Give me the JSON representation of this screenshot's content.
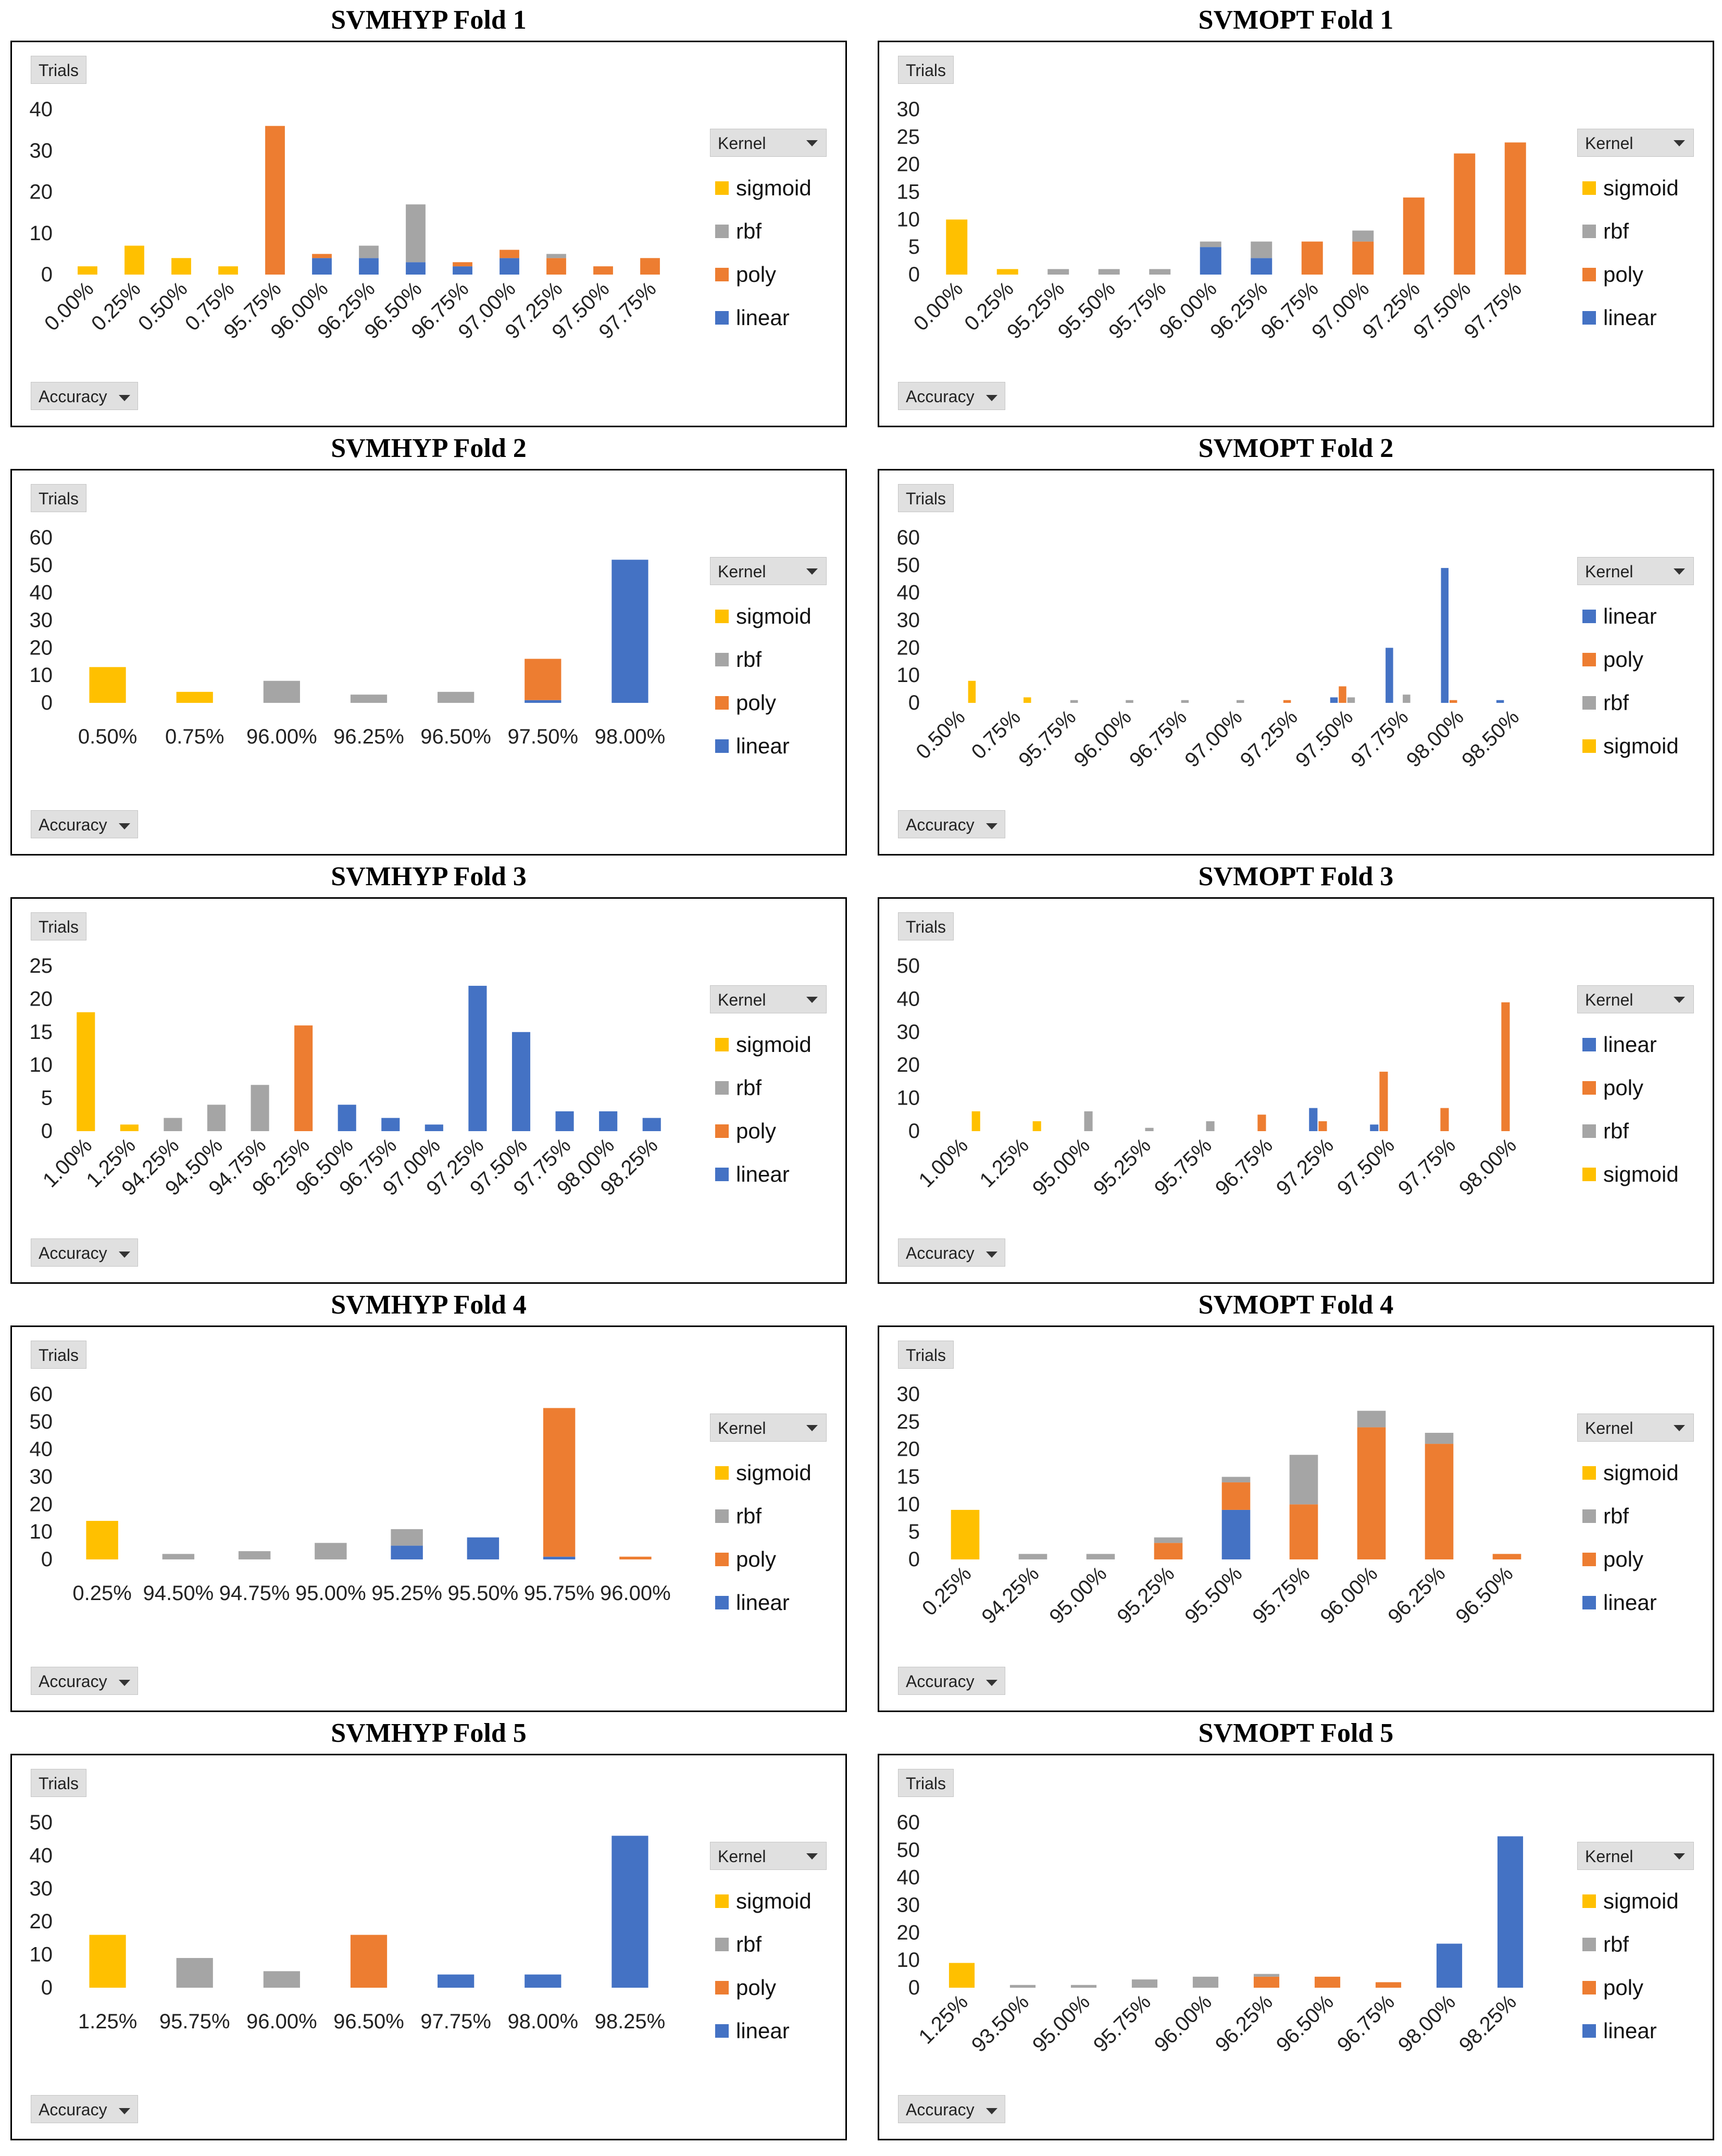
{
  "colors": {
    "sigmoid": "#FFC000",
    "rbf": "#A5A5A5",
    "poly": "#ED7D31",
    "linear": "#4472C4"
  },
  "controls": {
    "y_button": "Trials",
    "x_button": "Accuracy",
    "legend_button": "Kernel"
  },
  "chart_data": [
    {
      "type": "bar",
      "stacked": true,
      "title": "SVMHYP Fold 1",
      "xlabel": "Accuracy",
      "ylabel": "Trials",
      "ylim": [
        0,
        40
      ],
      "yticks": [
        0,
        10,
        20,
        30,
        40
      ],
      "rotated": true,
      "legend": [
        "sigmoid",
        "rbf",
        "poly",
        "linear"
      ],
      "stack_order": [
        "linear",
        "poly",
        "rbf",
        "sigmoid"
      ],
      "categories": [
        "0.00%",
        "0.25%",
        "0.50%",
        "0.75%",
        "95.75%",
        "96.00%",
        "96.25%",
        "96.50%",
        "96.75%",
        "97.00%",
        "97.25%",
        "97.50%",
        "97.75%"
      ],
      "series": [
        {
          "name": "linear",
          "values": [
            0,
            0,
            0,
            0,
            0,
            4,
            4,
            3,
            2,
            4,
            0,
            0,
            0
          ]
        },
        {
          "name": "poly",
          "values": [
            0,
            0,
            0,
            0,
            36,
            1,
            0,
            0,
            1,
            2,
            4,
            2,
            4
          ]
        },
        {
          "name": "rbf",
          "values": [
            0,
            0,
            0,
            0,
            0,
            0,
            3,
            14,
            0,
            0,
            1,
            0,
            0
          ]
        },
        {
          "name": "sigmoid",
          "values": [
            2,
            7,
            4,
            2,
            0,
            0,
            0,
            0,
            0,
            0,
            0,
            0,
            0
          ]
        }
      ]
    },
    {
      "type": "bar",
      "stacked": true,
      "title": "SVMOPT Fold 1",
      "xlabel": "Accuracy",
      "ylabel": "Trials",
      "ylim": [
        0,
        30
      ],
      "yticks": [
        0,
        5,
        10,
        15,
        20,
        25,
        30
      ],
      "rotated": true,
      "legend": [
        "sigmoid",
        "rbf",
        "poly",
        "linear"
      ],
      "stack_order": [
        "linear",
        "poly",
        "rbf",
        "sigmoid"
      ],
      "categories": [
        "0.00%",
        "0.25%",
        "95.25%",
        "95.50%",
        "95.75%",
        "96.00%",
        "96.25%",
        "96.75%",
        "97.00%",
        "97.25%",
        "97.50%",
        "97.75%"
      ],
      "series": [
        {
          "name": "linear",
          "values": [
            0,
            0,
            0,
            0,
            0,
            5,
            3,
            0,
            0,
            0,
            0,
            0
          ]
        },
        {
          "name": "poly",
          "values": [
            0,
            0,
            0,
            0,
            0,
            0,
            0,
            6,
            6,
            14,
            22,
            24
          ]
        },
        {
          "name": "rbf",
          "values": [
            0,
            0,
            1,
            1,
            1,
            1,
            3,
            0,
            2,
            0,
            0,
            0
          ]
        },
        {
          "name": "sigmoid",
          "values": [
            10,
            1,
            0,
            0,
            0,
            0,
            0,
            0,
            0,
            0,
            0,
            0
          ]
        }
      ]
    },
    {
      "type": "bar",
      "stacked": true,
      "title": "SVMHYP Fold 2",
      "xlabel": "Accuracy",
      "ylabel": "Trials",
      "ylim": [
        0,
        60
      ],
      "yticks": [
        0,
        10,
        20,
        30,
        40,
        50,
        60
      ],
      "rotated": false,
      "legend": [
        "sigmoid",
        "rbf",
        "poly",
        "linear"
      ],
      "stack_order": [
        "linear",
        "poly",
        "rbf",
        "sigmoid"
      ],
      "categories": [
        "0.50%",
        "0.75%",
        "96.00%",
        "96.25%",
        "96.50%",
        "97.50%",
        "98.00%"
      ],
      "series": [
        {
          "name": "linear",
          "values": [
            0,
            0,
            0,
            0,
            0,
            1,
            52
          ]
        },
        {
          "name": "poly",
          "values": [
            0,
            0,
            0,
            0,
            0,
            15,
            0
          ]
        },
        {
          "name": "rbf",
          "values": [
            0,
            0,
            8,
            3,
            4,
            0,
            0
          ]
        },
        {
          "name": "sigmoid",
          "values": [
            13,
            4,
            0,
            0,
            0,
            0,
            0
          ]
        }
      ]
    },
    {
      "type": "bar",
      "stacked": false,
      "title": "SVMOPT Fold 2",
      "xlabel": "Accuracy",
      "ylabel": "Trials",
      "ylim": [
        0,
        60
      ],
      "yticks": [
        0,
        10,
        20,
        30,
        40,
        50,
        60
      ],
      "rotated": true,
      "legend": [
        "linear",
        "poly",
        "rbf",
        "sigmoid"
      ],
      "series_order": [
        "linear",
        "poly",
        "rbf",
        "sigmoid"
      ],
      "categories": [
        "0.50%",
        "0.75%",
        "95.75%",
        "96.00%",
        "96.75%",
        "97.00%",
        "97.25%",
        "97.50%",
        "97.75%",
        "98.00%",
        "98.50%"
      ],
      "series": [
        {
          "name": "linear",
          "values": [
            0,
            0,
            0,
            0,
            0,
            0,
            0,
            2,
            20,
            49,
            1
          ]
        },
        {
          "name": "poly",
          "values": [
            0,
            0,
            0,
            0,
            0,
            0,
            1,
            6,
            0,
            1,
            0
          ]
        },
        {
          "name": "rbf",
          "values": [
            0,
            0,
            1,
            1,
            1,
            1,
            0,
            2,
            3,
            0,
            0
          ]
        },
        {
          "name": "sigmoid",
          "values": [
            8,
            2,
            0,
            0,
            0,
            0,
            0,
            0,
            0,
            0,
            0
          ]
        }
      ]
    },
    {
      "type": "bar",
      "stacked": true,
      "title": "SVMHYP Fold 3",
      "xlabel": "Accuracy",
      "ylabel": "Trials",
      "ylim": [
        0,
        25
      ],
      "yticks": [
        0,
        5,
        10,
        15,
        20,
        25
      ],
      "rotated": true,
      "legend": [
        "sigmoid",
        "rbf",
        "poly",
        "linear"
      ],
      "stack_order": [
        "linear",
        "poly",
        "rbf",
        "sigmoid"
      ],
      "categories": [
        "1.00%",
        "1.25%",
        "94.25%",
        "94.50%",
        "94.75%",
        "96.25%",
        "96.50%",
        "96.75%",
        "97.00%",
        "97.25%",
        "97.50%",
        "97.75%",
        "98.00%",
        "98.25%"
      ],
      "series": [
        {
          "name": "linear",
          "values": [
            0,
            0,
            0,
            0,
            0,
            0,
            4,
            2,
            1,
            22,
            15,
            3,
            3,
            2
          ]
        },
        {
          "name": "poly",
          "values": [
            0,
            0,
            0,
            0,
            0,
            16,
            0,
            0,
            0,
            0,
            0,
            0,
            0,
            0
          ]
        },
        {
          "name": "rbf",
          "values": [
            0,
            0,
            2,
            4,
            7,
            0,
            0,
            0,
            0,
            0,
            0,
            0,
            0,
            0
          ]
        },
        {
          "name": "sigmoid",
          "values": [
            18,
            1,
            0,
            0,
            0,
            0,
            0,
            0,
            0,
            0,
            0,
            0,
            0,
            0
          ]
        }
      ]
    },
    {
      "type": "bar",
      "stacked": false,
      "title": "SVMOPT Fold 3",
      "xlabel": "Accuracy",
      "ylabel": "Trials",
      "ylim": [
        0,
        50
      ],
      "yticks": [
        0,
        10,
        20,
        30,
        40,
        50
      ],
      "rotated": true,
      "legend": [
        "linear",
        "poly",
        "rbf",
        "sigmoid"
      ],
      "series_order": [
        "linear",
        "poly",
        "rbf",
        "sigmoid"
      ],
      "categories": [
        "1.00%",
        "1.25%",
        "95.00%",
        "95.25%",
        "95.75%",
        "96.75%",
        "97.25%",
        "97.50%",
        "97.75%",
        "98.00%"
      ],
      "series": [
        {
          "name": "linear",
          "values": [
            0,
            0,
            0,
            0,
            0,
            0,
            7,
            2,
            0,
            0
          ]
        },
        {
          "name": "poly",
          "values": [
            0,
            0,
            0,
            0,
            0,
            5,
            3,
            18,
            7,
            39
          ]
        },
        {
          "name": "rbf",
          "values": [
            0,
            0,
            6,
            1,
            3,
            0,
            0,
            0,
            0,
            0
          ]
        },
        {
          "name": "sigmoid",
          "values": [
            6,
            3,
            0,
            0,
            0,
            0,
            0,
            0,
            0,
            0
          ]
        }
      ]
    },
    {
      "type": "bar",
      "stacked": true,
      "title": "SVMHYP Fold 4",
      "xlabel": "Accuracy",
      "ylabel": "Trials",
      "ylim": [
        0,
        60
      ],
      "yticks": [
        0,
        10,
        20,
        30,
        40,
        50,
        60
      ],
      "rotated": false,
      "legend": [
        "sigmoid",
        "rbf",
        "poly",
        "linear"
      ],
      "stack_order": [
        "linear",
        "poly",
        "rbf",
        "sigmoid"
      ],
      "categories": [
        "0.25%",
        "94.50%",
        "94.75%",
        "95.00%",
        "95.25%",
        "95.50%",
        "95.75%",
        "96.00%"
      ],
      "series": [
        {
          "name": "linear",
          "values": [
            0,
            0,
            0,
            0,
            5,
            8,
            1,
            0
          ]
        },
        {
          "name": "poly",
          "values": [
            0,
            0,
            0,
            0,
            0,
            0,
            54,
            1
          ]
        },
        {
          "name": "rbf",
          "values": [
            0,
            2,
            3,
            6,
            6,
            0,
            0,
            0
          ]
        },
        {
          "name": "sigmoid",
          "values": [
            14,
            0,
            0,
            0,
            0,
            0,
            0,
            0
          ]
        }
      ]
    },
    {
      "type": "bar",
      "stacked": true,
      "title": "SVMOPT Fold 4",
      "xlabel": "Accuracy",
      "ylabel": "Trials",
      "ylim": [
        0,
        30
      ],
      "yticks": [
        0,
        5,
        10,
        15,
        20,
        25,
        30
      ],
      "rotated": true,
      "legend": [
        "sigmoid",
        "rbf",
        "poly",
        "linear"
      ],
      "stack_order": [
        "linear",
        "poly",
        "rbf",
        "sigmoid"
      ],
      "categories": [
        "0.25%",
        "94.25%",
        "95.00%",
        "95.25%",
        "95.50%",
        "95.75%",
        "96.00%",
        "96.25%",
        "96.50%"
      ],
      "series": [
        {
          "name": "linear",
          "values": [
            0,
            0,
            0,
            0,
            9,
            0,
            0,
            0,
            0
          ]
        },
        {
          "name": "poly",
          "values": [
            0,
            0,
            0,
            3,
            5,
            10,
            24,
            21,
            1
          ]
        },
        {
          "name": "rbf",
          "values": [
            0,
            1,
            1,
            1,
            1,
            9,
            3,
            2,
            0
          ]
        },
        {
          "name": "sigmoid",
          "values": [
            9,
            0,
            0,
            0,
            0,
            0,
            0,
            0,
            0
          ]
        }
      ]
    },
    {
      "type": "bar",
      "stacked": true,
      "title": "SVMHYP Fold 5",
      "xlabel": "Accuracy",
      "ylabel": "Trials",
      "ylim": [
        0,
        50
      ],
      "yticks": [
        0,
        10,
        20,
        30,
        40,
        50
      ],
      "rotated": false,
      "legend": [
        "sigmoid",
        "rbf",
        "poly",
        "linear"
      ],
      "stack_order": [
        "linear",
        "poly",
        "rbf",
        "sigmoid"
      ],
      "categories": [
        "1.25%",
        "95.75%",
        "96.00%",
        "96.50%",
        "97.75%",
        "98.00%",
        "98.25%"
      ],
      "series": [
        {
          "name": "linear",
          "values": [
            0,
            0,
            0,
            0,
            4,
            4,
            46
          ]
        },
        {
          "name": "poly",
          "values": [
            0,
            0,
            0,
            16,
            0,
            0,
            0
          ]
        },
        {
          "name": "rbf",
          "values": [
            0,
            9,
            5,
            0,
            0,
            0,
            0
          ]
        },
        {
          "name": "sigmoid",
          "values": [
            16,
            0,
            0,
            0,
            0,
            0,
            0
          ]
        }
      ]
    },
    {
      "type": "bar",
      "stacked": true,
      "title": "SVMOPT Fold 5",
      "xlabel": "Accuracy",
      "ylabel": "Trials",
      "ylim": [
        0,
        60
      ],
      "yticks": [
        0,
        10,
        20,
        30,
        40,
        50,
        60
      ],
      "rotated": true,
      "legend": [
        "sigmoid",
        "rbf",
        "poly",
        "linear"
      ],
      "stack_order": [
        "linear",
        "poly",
        "rbf",
        "sigmoid"
      ],
      "categories": [
        "1.25%",
        "93.50%",
        "95.00%",
        "95.75%",
        "96.00%",
        "96.25%",
        "96.50%",
        "96.75%",
        "98.00%",
        "98.25%"
      ],
      "series": [
        {
          "name": "linear",
          "values": [
            0,
            0,
            0,
            0,
            0,
            0,
            0,
            0,
            16,
            55
          ]
        },
        {
          "name": "poly",
          "values": [
            0,
            0,
            0,
            0,
            0,
            4,
            4,
            2,
            0,
            0
          ]
        },
        {
          "name": "rbf",
          "values": [
            0,
            1,
            1,
            3,
            4,
            1,
            0,
            0,
            0,
            0
          ]
        },
        {
          "name": "sigmoid",
          "values": [
            9,
            0,
            0,
            0,
            0,
            0,
            0,
            0,
            0,
            0
          ]
        }
      ]
    }
  ]
}
